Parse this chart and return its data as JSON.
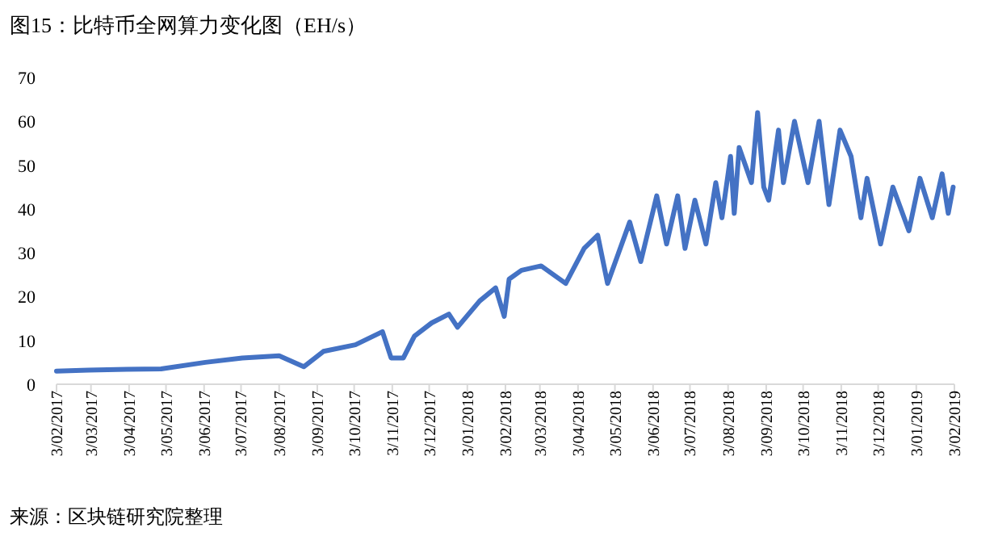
{
  "chart_data": {
    "type": "line",
    "title": "图15：比特币全网算力变化图（EH/s）",
    "annotations": [
      "来源：区块链研究院整理"
    ],
    "x": [
      "2017-02-03",
      "2017-03-01",
      "2017-04-01",
      "2017-04-29",
      "2017-06-04",
      "2017-07-04",
      "2017-08-03",
      "2017-08-23",
      "2017-09-08",
      "2017-10-04",
      "2017-10-26",
      "2017-11-02",
      "2017-11-12",
      "2017-11-21",
      "2017-12-05",
      "2017-12-19",
      "2017-12-26",
      "2018-01-13",
      "2018-01-26",
      "2018-02-02",
      "2018-02-06",
      "2018-02-16",
      "2018-03-04",
      "2018-03-24",
      "2018-04-08",
      "2018-04-19",
      "2018-04-27",
      "2018-05-15",
      "2018-05-24",
      "2018-06-06",
      "2018-06-14",
      "2018-06-23",
      "2018-06-29",
      "2018-07-07",
      "2018-07-16",
      "2018-07-24",
      "2018-07-29",
      "2018-08-05",
      "2018-08-08",
      "2018-08-12",
      "2018-08-22",
      "2018-08-27",
      "2018-09-01",
      "2018-09-05",
      "2018-09-13",
      "2018-09-17",
      "2018-09-26",
      "2018-10-07",
      "2018-10-16",
      "2018-10-24",
      "2018-11-02",
      "2018-11-11",
      "2018-11-19",
      "2018-11-24",
      "2018-12-05",
      "2018-12-15",
      "2018-12-28",
      "2019-01-06",
      "2019-01-16",
      "2019-01-24",
      "2019-01-29",
      "2019-02-02"
    ],
    "series": [
      {
        "color": "#4472c4",
        "values": [
          3,
          3.2,
          3.4,
          3.5,
          5,
          6,
          6.5,
          4,
          7.5,
          9,
          12,
          6,
          6,
          11,
          14,
          16,
          13,
          19,
          22,
          15.5,
          24,
          26,
          27,
          23,
          31,
          34,
          23,
          37,
          28,
          43,
          32,
          43,
          31,
          42,
          32,
          46,
          38,
          52,
          39,
          54,
          46,
          62,
          45,
          42,
          58,
          46,
          60,
          46,
          60,
          41,
          58,
          52,
          38,
          47,
          32,
          45,
          35,
          47,
          38,
          48,
          39,
          45
        ]
      }
    ],
    "xlim": [
      "2017-02-03",
      "2019-02-03"
    ],
    "xticks": [
      {
        "value": "2017-02-03",
        "label": "3/02/2017"
      },
      {
        "value": "2017-03-03",
        "label": "3/03/2017"
      },
      {
        "value": "2017-04-03",
        "label": "3/04/2017"
      },
      {
        "value": "2017-05-03",
        "label": "3/05/2017"
      },
      {
        "value": "2017-06-03",
        "label": "3/06/2017"
      },
      {
        "value": "2017-07-03",
        "label": "3/07/2017"
      },
      {
        "value": "2017-08-03",
        "label": "3/08/2017"
      },
      {
        "value": "2017-09-03",
        "label": "3/09/2017"
      },
      {
        "value": "2017-10-03",
        "label": "3/10/2017"
      },
      {
        "value": "2017-11-03",
        "label": "3/11/2017"
      },
      {
        "value": "2017-12-03",
        "label": "3/12/2017"
      },
      {
        "value": "2018-01-03",
        "label": "3/01/2018"
      },
      {
        "value": "2018-02-03",
        "label": "3/02/2018"
      },
      {
        "value": "2018-03-03",
        "label": "3/03/2018"
      },
      {
        "value": "2018-04-03",
        "label": "3/04/2018"
      },
      {
        "value": "2018-05-03",
        "label": "3/05/2018"
      },
      {
        "value": "2018-06-03",
        "label": "3/06/2018"
      },
      {
        "value": "2018-07-03",
        "label": "3/07/2018"
      },
      {
        "value": "2018-08-03",
        "label": "3/08/2018"
      },
      {
        "value": "2018-09-03",
        "label": "3/09/2018"
      },
      {
        "value": "2018-10-03",
        "label": "3/10/2018"
      },
      {
        "value": "2018-11-03",
        "label": "3/11/2018"
      },
      {
        "value": "2018-12-03",
        "label": "3/12/2018"
      },
      {
        "value": "2019-01-03",
        "label": "3/01/2019"
      },
      {
        "value": "2019-02-03",
        "label": "3/02/2019"
      }
    ],
    "ylim": [
      0,
      70
    ],
    "yticks": [
      0,
      10,
      20,
      30,
      40,
      50,
      60,
      70
    ],
    "grid": false
  }
}
